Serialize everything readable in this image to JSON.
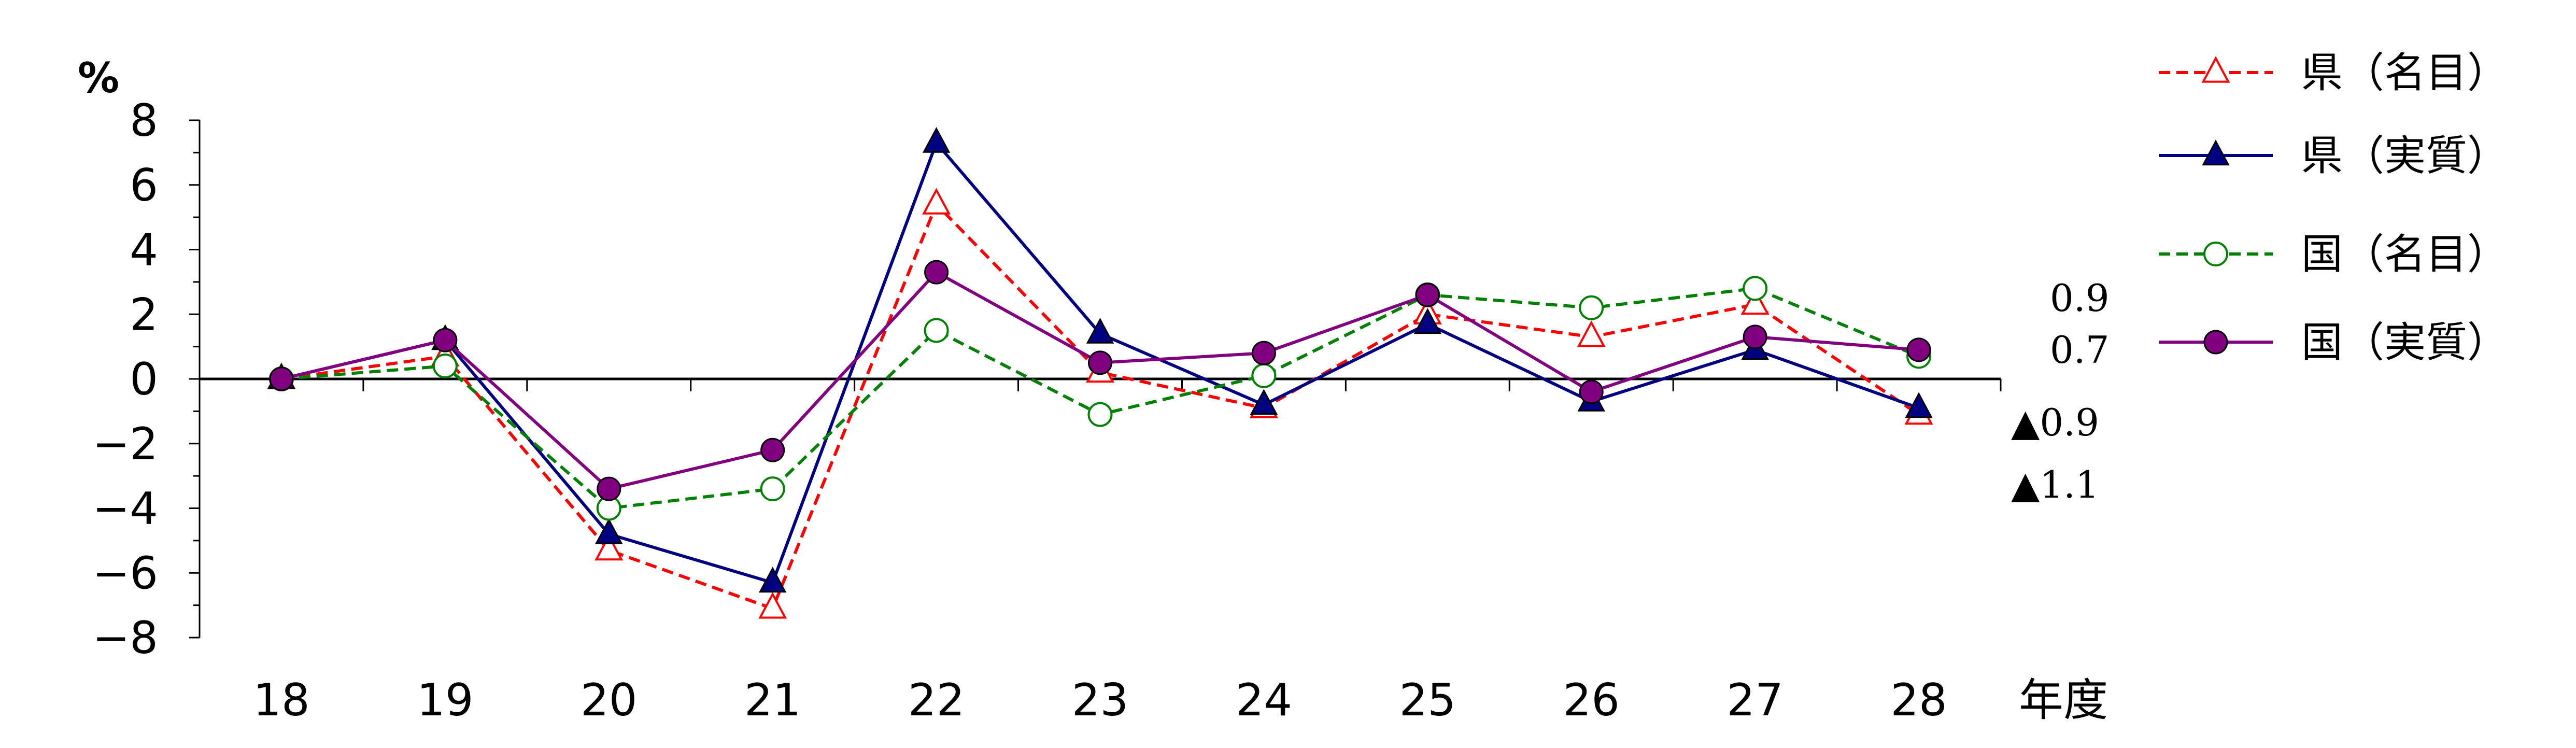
{
  "chart_data": {
    "type": "line",
    "ylabel_unit": "%",
    "xlabel": "年度",
    "ylim": [
      -8,
      8
    ],
    "yticks": [
      8,
      6,
      4,
      2,
      0,
      -2,
      -4,
      -6,
      -8
    ],
    "yticks_labels": [
      "8",
      "6",
      "4",
      "2",
      "0",
      "−2",
      "−4",
      "−6",
      "−8"
    ],
    "categories": [
      "18",
      "19",
      "20",
      "21",
      "22",
      "23",
      "24",
      "25",
      "26",
      "27",
      "28"
    ],
    "series": [
      {
        "name": "県（名目）",
        "color": "#ff0000",
        "dash": true,
        "marker": "triangle-open",
        "values": [
          0.0,
          0.7,
          -5.3,
          -7.1,
          5.4,
          0.2,
          -0.9,
          2.0,
          1.3,
          2.3,
          -1.1
        ]
      },
      {
        "name": "県（実質）",
        "color": "#000080",
        "dash": false,
        "marker": "triangle-filled",
        "values": [
          0.0,
          1.2,
          -4.8,
          -6.3,
          7.3,
          1.4,
          -0.8,
          1.7,
          -0.7,
          0.9,
          -0.9
        ]
      },
      {
        "name": "国（名目）",
        "color": "#008000",
        "dash": true,
        "marker": "circle-open",
        "values": [
          0.0,
          0.4,
          -4.0,
          -3.4,
          1.5,
          -1.1,
          0.1,
          2.6,
          2.2,
          2.8,
          0.7
        ]
      },
      {
        "name": "国（実質）",
        "color": "#800080",
        "dash": false,
        "marker": "circle-filled",
        "values": [
          0.0,
          1.2,
          -3.4,
          -2.2,
          3.3,
          0.5,
          0.8,
          2.6,
          -0.4,
          1.3,
          0.9
        ]
      }
    ],
    "annotations": [
      "0.9",
      "0.7",
      "▲0.9",
      "▲1.1"
    ],
    "grid": false,
    "legend_position": "top-right"
  }
}
